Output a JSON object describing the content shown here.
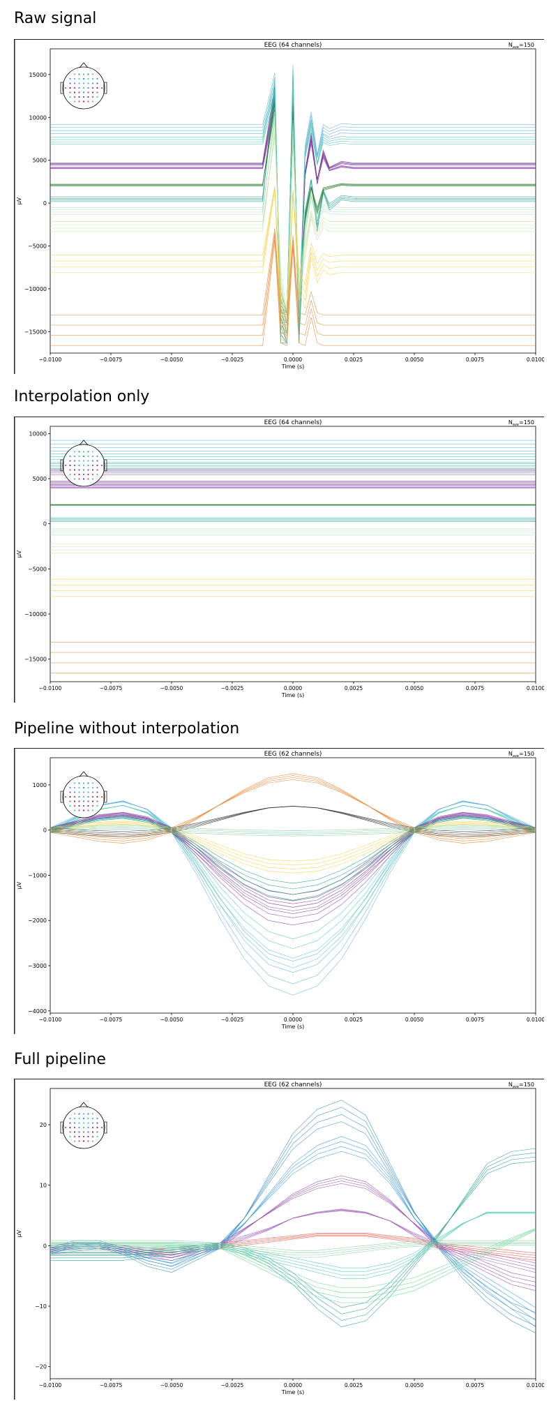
{
  "sections": [
    {
      "heading": "Raw signal",
      "chart": {
        "type": "line",
        "title": "EEG (64 channels)",
        "nave_label": "N",
        "nave_sub": "ave",
        "nave_value": "=150",
        "xlabel": "Time (s)",
        "ylabel": "µV",
        "xlim": [
          -0.01,
          0.01
        ],
        "ylim": [
          -17500,
          18000
        ],
        "xticks": [
          "−0.0100",
          "−0.0075",
          "−0.0050",
          "−0.0025",
          "0.0000",
          "0.0025",
          "0.0050",
          "0.0075",
          "0.0100"
        ],
        "yticks": [
          15000,
          10000,
          5000,
          0,
          -5000,
          -10000,
          -15000
        ],
        "ytick_labels": [
          "15000",
          "10000",
          "5000",
          "0",
          "−5000",
          "−10000",
          "−15000"
        ]
      }
    },
    {
      "heading": "Interpolation only",
      "chart": {
        "type": "line",
        "title": "EEG (64 channels)",
        "nave_label": "N",
        "nave_sub": "ave",
        "nave_value": "=150",
        "xlabel": "Time (s)",
        "ylabel": "µV",
        "xlim": [
          -0.01,
          0.01
        ],
        "ylim": [
          -17500,
          10800
        ],
        "xticks": [
          "−0.0100",
          "−0.0075",
          "−0.0050",
          "−0.0025",
          "0.0000",
          "0.0025",
          "0.0050",
          "0.0075",
          "0.0100"
        ],
        "yticks": [
          10000,
          5000,
          0,
          -5000,
          -10000,
          -15000
        ],
        "ytick_labels": [
          "10000",
          "5000",
          "0",
          "−5000",
          "−10000",
          "−15000"
        ]
      }
    },
    {
      "heading": "Pipeline without interpolation",
      "chart": {
        "type": "line",
        "title": "EEG (62 channels)",
        "nave_label": "N",
        "nave_sub": "ave",
        "nave_value": "=150",
        "xlabel": "Time (s)",
        "ylabel": "µV",
        "xlim": [
          -0.01,
          0.01
        ],
        "ylim": [
          -4050,
          1600
        ],
        "xticks": [
          "−0.0100",
          "−0.0075",
          "−0.0050",
          "−0.0025",
          "0.0000",
          "0.0025",
          "0.0050",
          "0.0075",
          "0.0100"
        ],
        "yticks": [
          1000,
          0,
          -1000,
          -2000,
          -3000,
          -4000
        ],
        "ytick_labels": [
          "1000",
          "0",
          "−1000",
          "−2000",
          "−3000",
          "−4000"
        ]
      }
    },
    {
      "heading": "Full pipeline",
      "chart": {
        "type": "line",
        "title": "EEG (62 channels)",
        "nave_label": "N",
        "nave_sub": "ave",
        "nave_value": "=150",
        "xlabel": "Time (s)",
        "ylabel": "µV",
        "xlim": [
          -0.01,
          0.01
        ],
        "ylim": [
          -22,
          26
        ],
        "xticks": [
          "−0.0100",
          "−0.0075",
          "−0.0050",
          "−0.0025",
          "0.0000",
          "0.0025",
          "0.0050",
          "0.0075",
          "0.0100"
        ],
        "yticks": [
          20,
          10,
          0,
          -10,
          -20
        ],
        "ytick_labels": [
          "20",
          "10",
          "0",
          "−10",
          "−20"
        ]
      }
    }
  ],
  "chart_data": [
    {
      "type": "line",
      "title": "EEG (64 channels)",
      "xlabel": "Time (s)",
      "ylabel": "µV",
      "xlim": [
        -0.01,
        0.01
      ],
      "ylim": [
        -17500,
        18000
      ],
      "x": [
        -0.01,
        -0.00125,
        -0.00075,
        -0.0005,
        -0.00025,
        0.0,
        0.00025,
        0.0005,
        0.00075,
        0.001,
        0.00125,
        0.0015,
        0.002,
        0.0025,
        0.01
      ],
      "series": [
        {
          "color": "#6a2c91",
          "values": [
            5000,
            5000,
            14000,
            -15000,
            -16000,
            13500,
            -16000,
            4000,
            8500,
            3000,
            6500,
            4500,
            5200,
            5000,
            5000
          ]
        },
        {
          "color": "#8e44ad",
          "values": [
            4500,
            4500,
            13000,
            -14000,
            -16000,
            12500,
            -15000,
            3500,
            8000,
            2500,
            6000,
            4200,
            4700,
            4500,
            4500
          ]
        },
        {
          "color": "#1f9e89",
          "values": [
            500,
            500,
            14500,
            -16000,
            -16000,
            15500,
            -16000,
            -1500,
            3000,
            -3000,
            1500,
            -500,
            700,
            500,
            500
          ]
        },
        {
          "color": "#2e7d32",
          "values": [
            2300,
            2300,
            12500,
            -13000,
            -16000,
            11000,
            -14000,
            -2000,
            2000,
            -1000,
            1800,
            2000,
            2400,
            2300,
            2300
          ]
        },
        {
          "color": "#5dade2",
          "values": [
            9500,
            9500,
            15500,
            -15000,
            -16000,
            16500,
            -16000,
            7000,
            11000,
            6000,
            9500,
            9000,
            9600,
            9500,
            9500
          ]
        },
        {
          "color": "#48c9b0",
          "values": [
            8000,
            8000,
            15000,
            -15500,
            -16000,
            16000,
            -16000,
            6000,
            10000,
            5000,
            8300,
            7800,
            8100,
            8000,
            8000
          ]
        },
        {
          "color": "#a9dfbf",
          "values": [
            -1000,
            -1000,
            11000,
            -12000,
            -16000,
            10000,
            -13000,
            -3500,
            1000,
            -2000,
            -600,
            -900,
            -1000,
            -1000,
            -1000
          ]
        },
        {
          "color": "#c5e1a5",
          "values": [
            -3000,
            -3000,
            9000,
            -10000,
            -16000,
            8000,
            -11000,
            -6000,
            -1500,
            -4000,
            -2500,
            -3000,
            -3000,
            -3000,
            -3000
          ]
        },
        {
          "color": "#f4d03f",
          "values": [
            -7800,
            -7800,
            2000,
            -14000,
            -16000,
            1500,
            -10000,
            -12000,
            -6000,
            -9000,
            -7500,
            -8000,
            -7800,
            -7800,
            -7800
          ]
        },
        {
          "color": "#e67e22",
          "values": [
            -16300,
            -16300,
            -4000,
            -16000,
            -16300,
            -5000,
            -16000,
            -16300,
            -13000,
            -16000,
            -16300,
            -16300,
            -16300,
            -16300,
            -16300
          ]
        }
      ]
    },
    {
      "type": "line",
      "title": "EEG (64 channels)",
      "xlabel": "Time (s)",
      "ylabel": "µV",
      "xlim": [
        -0.01,
        0.01
      ],
      "ylim": [
        -17500,
        10800
      ],
      "x": [
        -0.01,
        0.01
      ],
      "series": [
        {
          "color": "#5dade2",
          "values": [
            9500,
            9500
          ]
        },
        {
          "color": "#48c9b0",
          "values": [
            8000,
            8000
          ]
        },
        {
          "color": "#1f9e89",
          "values": [
            6900,
            6900
          ]
        },
        {
          "color": "#8e44ad",
          "values": [
            6300,
            6300
          ]
        },
        {
          "color": "#6a2c91",
          "values": [
            5000,
            5000
          ]
        },
        {
          "color": "#8e44ad",
          "values": [
            4500,
            4500
          ]
        },
        {
          "color": "#2e7d32",
          "values": [
            2300,
            2300
          ]
        },
        {
          "color": "#1f9e89",
          "values": [
            500,
            500
          ]
        },
        {
          "color": "#a9dfbf",
          "values": [
            -1000,
            -1000
          ]
        },
        {
          "color": "#c5e1a5",
          "values": [
            -3000,
            -3000
          ]
        },
        {
          "color": "#f4d03f",
          "values": [
            -7800,
            -7800
          ]
        },
        {
          "color": "#e67e22",
          "values": [
            -16300,
            -16300
          ]
        }
      ]
    },
    {
      "type": "line",
      "title": "EEG (62 channels)",
      "xlabel": "Time (s)",
      "ylabel": "µV",
      "xlim": [
        -0.01,
        0.01
      ],
      "ylim": [
        -4050,
        1600
      ],
      "x": [
        -0.01,
        -0.009,
        -0.008,
        -0.007,
        -0.006,
        -0.005,
        -0.004,
        -0.003,
        -0.002,
        -0.001,
        0.0,
        0.001,
        0.002,
        0.003,
        0.004,
        0.005,
        0.006,
        0.007,
        0.008,
        0.009,
        0.01
      ],
      "series": [
        {
          "color": "#5dade2",
          "values": [
            0,
            300,
            600,
            700,
            500,
            0,
            -900,
            -1900,
            -2800,
            -3400,
            -3600,
            -3400,
            -2800,
            -1900,
            -900,
            0,
            500,
            700,
            600,
            300,
            0
          ]
        },
        {
          "color": "#48c9b0",
          "values": [
            0,
            250,
            500,
            600,
            420,
            0,
            -750,
            -1600,
            -2300,
            -2800,
            -3000,
            -2800,
            -2300,
            -1600,
            -750,
            0,
            420,
            600,
            500,
            250,
            0
          ]
        },
        {
          "color": "#8e44ad",
          "values": [
            0,
            180,
            350,
            420,
            300,
            0,
            -520,
            -1100,
            -1600,
            -1950,
            -2050,
            -1950,
            -1600,
            -1100,
            -520,
            0,
            300,
            420,
            350,
            180,
            0
          ]
        },
        {
          "color": "#6a2c91",
          "values": [
            0,
            160,
            300,
            360,
            260,
            0,
            -450,
            -950,
            -1400,
            -1700,
            -1800,
            -1700,
            -1400,
            -950,
            -450,
            0,
            260,
            360,
            300,
            160,
            0
          ]
        },
        {
          "color": "#1f9e89",
          "values": [
            0,
            140,
            260,
            310,
            220,
            0,
            -380,
            -800,
            -1150,
            -1400,
            -1500,
            -1400,
            -1150,
            -800,
            -380,
            0,
            220,
            310,
            260,
            140,
            0
          ]
        },
        {
          "color": "#f4d03f",
          "values": [
            0,
            80,
            150,
            180,
            130,
            0,
            -220,
            -470,
            -700,
            -860,
            -900,
            -860,
            -700,
            -470,
            -220,
            0,
            130,
            180,
            150,
            80,
            0
          ]
        },
        {
          "color": "#e67e22",
          "values": [
            0,
            -100,
            -200,
            -240,
            -170,
            0,
            280,
            620,
            950,
            1210,
            1300,
            1210,
            950,
            620,
            280,
            0,
            -170,
            -240,
            -200,
            -100,
            0
          ]
        },
        {
          "color": "#333333",
          "values": [
            0,
            -40,
            -80,
            -100,
            -70,
            0,
            120,
            270,
            420,
            540,
            580,
            540,
            420,
            270,
            120,
            0,
            -70,
            -100,
            -80,
            -40,
            0
          ]
        },
        {
          "color": "#7dcea0",
          "values": [
            0,
            30,
            60,
            70,
            50,
            0,
            -20,
            -40,
            -60,
            -70,
            -80,
            -70,
            -60,
            -40,
            -20,
            0,
            50,
            70,
            60,
            30,
            0
          ]
        }
      ]
    },
    {
      "type": "line",
      "title": "EEG (62 channels)",
      "xlabel": "Time (s)",
      "ylabel": "µV",
      "xlim": [
        -0.01,
        0.01
      ],
      "ylim": [
        -22,
        26
      ],
      "x": [
        -0.01,
        -0.009,
        -0.008,
        -0.007,
        -0.006,
        -0.005,
        -0.004,
        -0.003,
        -0.002,
        -0.001,
        0.0,
        0.001,
        0.002,
        0.003,
        0.004,
        0.005,
        0.006,
        0.007,
        0.008,
        0.009,
        0.01
      ],
      "series": [
        {
          "color": "#2e86c1",
          "values": [
            -1,
            0.5,
            0.5,
            -1,
            -3,
            -4,
            -2,
            0,
            5,
            12,
            19,
            23,
            24.5,
            22,
            14,
            6,
            0,
            -5,
            -9,
            -12,
            -14
          ]
        },
        {
          "color": "#3498db",
          "values": [
            -1,
            -0.5,
            0,
            -1,
            -2,
            -3,
            -1.5,
            0,
            4,
            9,
            14,
            17,
            18.5,
            17,
            12,
            5,
            0,
            -4,
            -7,
            -10,
            -13
          ]
        },
        {
          "color": "#8e44ad",
          "values": [
            -0.5,
            0,
            0,
            -0.5,
            -1.5,
            -2,
            -1,
            0,
            3,
            6,
            9,
            11,
            12,
            11,
            8,
            4,
            0,
            -2,
            -4,
            -6,
            -7
          ]
        },
        {
          "color": "#9b59b6",
          "values": [
            -0.5,
            0,
            0,
            -0.5,
            -1,
            -1.5,
            -0.5,
            0,
            1.5,
            3,
            5,
            6,
            6.5,
            6,
            4.5,
            2,
            0,
            -1,
            -2,
            -3,
            -4
          ]
        },
        {
          "color": "#e74c3c",
          "values": [
            -1,
            -1,
            -1,
            -1,
            -1,
            -1,
            -0.5,
            0,
            0.5,
            1,
            1.5,
            2,
            2,
            2,
            1.5,
            1,
            0,
            -0.5,
            -1,
            -1.5,
            -2
          ]
        },
        {
          "color": "#1f9e89",
          "values": [
            -2,
            -2,
            -2,
            -2,
            -1.5,
            -1,
            -0.5,
            0,
            -1,
            -3,
            -6,
            -10,
            -13,
            -12,
            -8,
            -3,
            2,
            8,
            14,
            16,
            16.5
          ]
        },
        {
          "color": "#48c9b0",
          "values": [
            -1,
            -1,
            -1,
            -1,
            -1,
            -0.5,
            -0.5,
            0,
            -1,
            -2,
            -3,
            -4,
            -5,
            -5,
            -4,
            -2,
            1,
            4,
            6,
            6,
            6
          ]
        },
        {
          "color": "#7dcea0",
          "values": [
            0.5,
            0.5,
            0.5,
            0.5,
            0.5,
            0.5,
            0.3,
            0,
            -0.5,
            -1,
            -1.5,
            -1.5,
            -1,
            -0.5,
            0,
            0.3,
            0.5,
            0.5,
            0.5,
            0.5,
            0.5
          ]
        },
        {
          "color": "#58d68d",
          "values": [
            0,
            0,
            0,
            0,
            0,
            0,
            0,
            0,
            -2,
            -4,
            -6,
            -8,
            -9,
            -9,
            -8,
            -7,
            -5,
            -3,
            -1,
            1,
            3
          ]
        }
      ]
    }
  ]
}
